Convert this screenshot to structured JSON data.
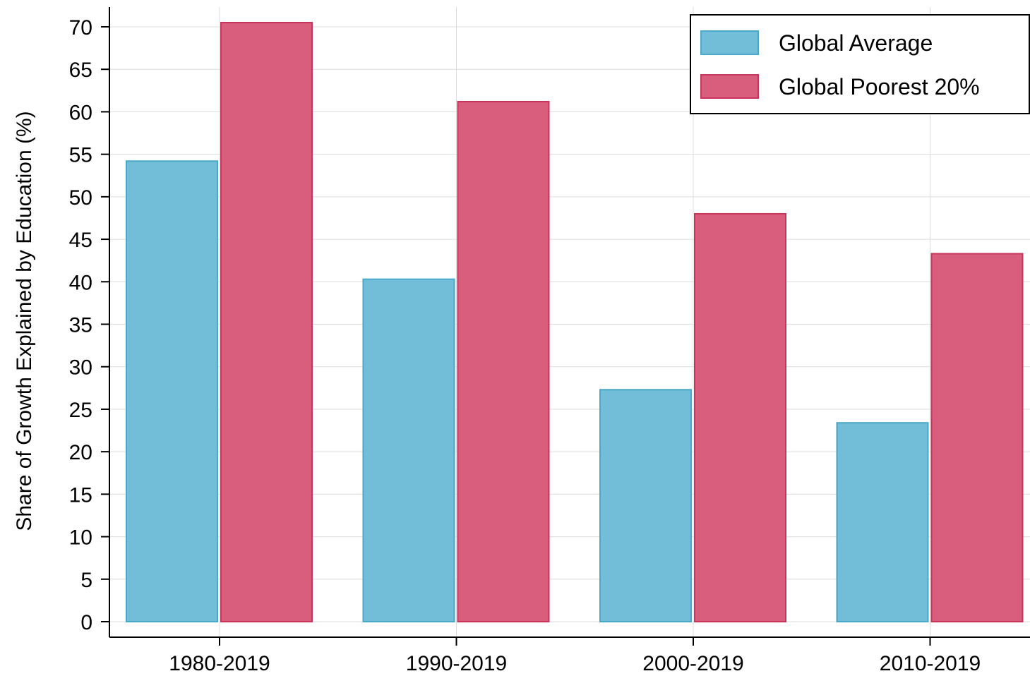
{
  "chart_data": {
    "type": "bar",
    "categories": [
      "1980-2019",
      "1990-2019",
      "2000-2019",
      "2010-2019"
    ],
    "series": [
      {
        "name": "Global Average",
        "values": [
          54.2,
          40.3,
          27.3,
          23.4
        ],
        "fill": "#72bdd8",
        "stroke": "#4aa8c9"
      },
      {
        "name": "Global Poorest 20%",
        "values": [
          70.5,
          61.2,
          48.0,
          43.3
        ],
        "fill": "#d95d7c",
        "stroke": "#c8345a"
      }
    ],
    "title": "",
    "xlabel": "",
    "ylabel": "Share of Growth Explained by Education (%)",
    "ylim": [
      0,
      72
    ],
    "yticks": [
      0,
      5,
      10,
      15,
      20,
      25,
      30,
      35,
      40,
      45,
      50,
      55,
      60,
      65,
      70
    ],
    "grid": true,
    "legend_position": "top-right"
  }
}
